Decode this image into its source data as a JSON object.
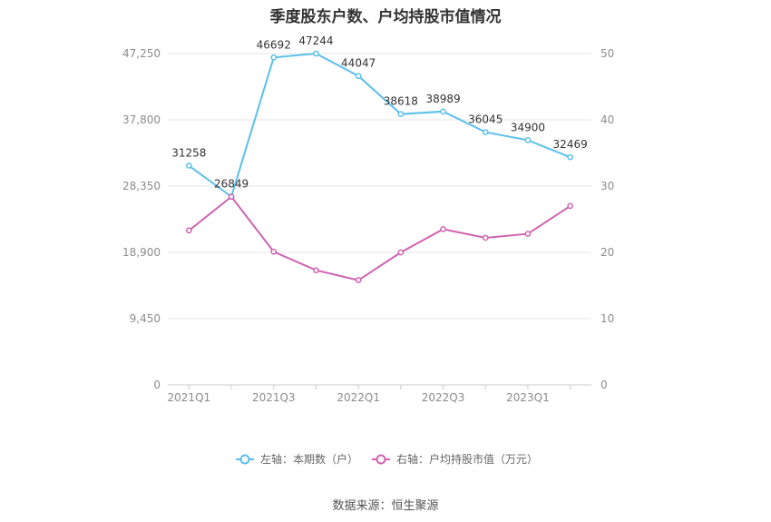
{
  "chart_data": {
    "type": "line",
    "title": "季度股东户数、户均持股市值情况",
    "categories": [
      "2021Q1",
      "2021Q2",
      "2021Q3",
      "2021Q4",
      "2022Q1",
      "2022Q2",
      "2022Q3",
      "2022Q4",
      "2023Q1",
      "2023Q2"
    ],
    "x_tick_labels": [
      "2021Q1",
      "",
      "2021Q3",
      "",
      "2022Q1",
      "",
      "2022Q3",
      "",
      "2023Q1",
      ""
    ],
    "left_axis": {
      "min": 0,
      "max": 47250,
      "ticks": [
        "0",
        "9,450",
        "18,900",
        "28,350",
        "37,800",
        "47,250"
      ]
    },
    "right_axis": {
      "min": 0,
      "max": 50,
      "ticks": [
        "0",
        "10",
        "20",
        "30",
        "40",
        "50"
      ]
    },
    "series": [
      {
        "name": "左轴：本期数（户）",
        "axis": "left",
        "color": "#5bc0eb",
        "values": [
          31258,
          26849,
          46692,
          47244,
          44047,
          38618,
          38989,
          36045,
          34900,
          32469
        ],
        "labels": [
          "31258",
          "26849",
          "46692",
          "47244",
          "44047",
          "38618",
          "38989",
          "36045",
          "34900",
          "32469"
        ]
      },
      {
        "name": "右轴：户均持股市值（万元）",
        "axis": "right",
        "color": "#d063b0",
        "values": [
          23.3,
          28.4,
          20.1,
          17.3,
          15.8,
          20.0,
          23.5,
          22.2,
          22.8,
          27.0
        ]
      }
    ],
    "grid": true,
    "legend_position": "bottom"
  },
  "footer": {
    "source": "数据来源：恒生聚源"
  }
}
